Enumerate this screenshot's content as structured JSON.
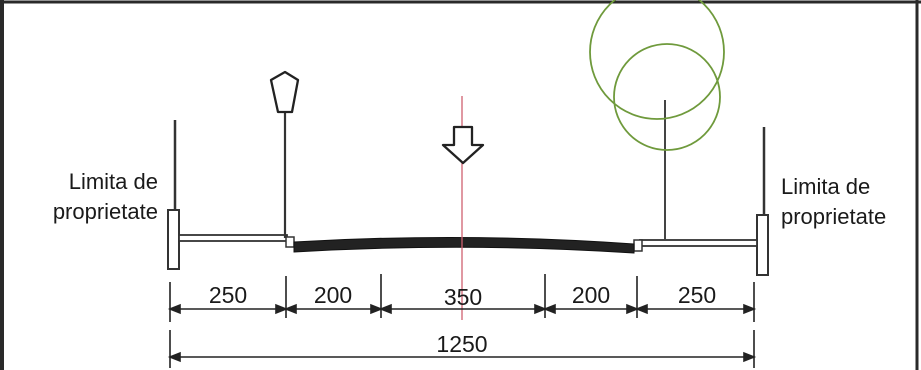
{
  "left_label": {
    "line1": "Limita de",
    "line2": "proprietate"
  },
  "right_label": {
    "line1": "Limita de",
    "line2": "proprietate"
  },
  "dimensions": {
    "segments": [
      "250",
      "200",
      "350",
      "200",
      "250"
    ],
    "total": "1250"
  },
  "colors": {
    "ink": "#1a1a1a",
    "axis": "#d06070",
    "tree": "#6f9a3c",
    "border": "#2a2a2a"
  },
  "icons": [
    "street-lamp-icon",
    "direction-arrow-icon",
    "tree-icon"
  ]
}
